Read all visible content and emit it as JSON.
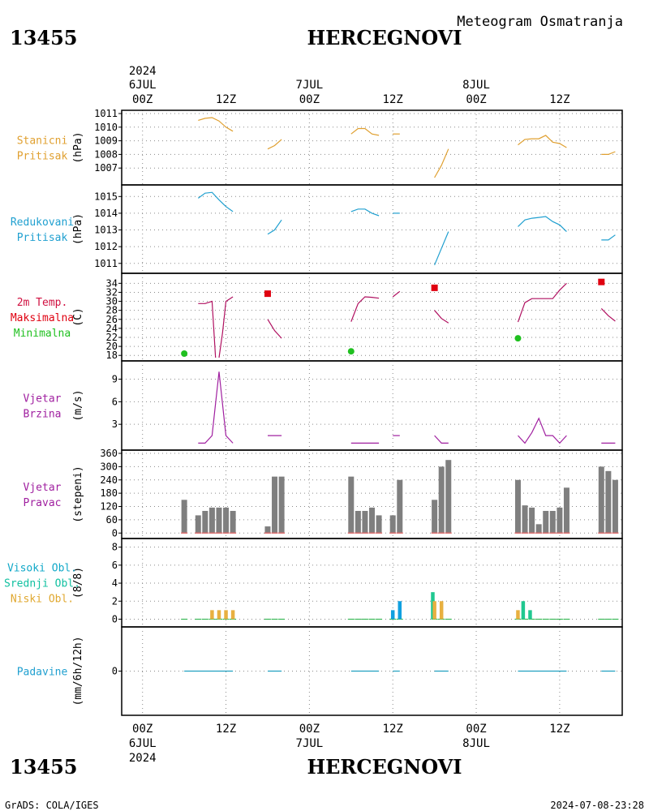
{
  "header": {
    "station_id": "13455",
    "station_name": "HERCEGNOVI",
    "subtitle": "Meteogram Osmatranja"
  },
  "footer": {
    "station_id": "13455",
    "station_name": "HERCEGNOVI",
    "credit": "GrADS: COLA/IGES",
    "timestamp": "2024-07-08-23:28"
  },
  "time_axis": {
    "top": {
      "year": "2024",
      "days": [
        {
          "day": "6JUL",
          "hour": "00Z",
          "t": 0
        },
        {
          "day": "7JUL",
          "hour": "00Z",
          "t": 24
        },
        {
          "day": "8JUL",
          "hour": "00Z",
          "t": 48
        }
      ],
      "midday": [
        {
          "hour": "12Z",
          "t": 12
        },
        {
          "hour": "12Z",
          "t": 36
        },
        {
          "hour": "12Z",
          "t": 60
        }
      ]
    },
    "bottom": {
      "hours": [
        {
          "hour": "00Z",
          "t": 0
        },
        {
          "hour": "12Z",
          "t": 12
        },
        {
          "hour": "00Z",
          "t": 24
        },
        {
          "hour": "12Z",
          "t": 36
        },
        {
          "hour": "00Z",
          "t": 48
        },
        {
          "hour": "12Z",
          "t": 60
        }
      ],
      "days": [
        {
          "day": "6JUL",
          "t": 0
        },
        {
          "day": "7JUL",
          "t": 24
        },
        {
          "day": "8JUL",
          "t": 48
        }
      ],
      "year": "2024"
    },
    "range_hours": [
      -3,
      69
    ]
  },
  "chart_data": [
    {
      "type": "line",
      "id": "station-pressure",
      "labels": [
        "Stanicni",
        "Pritisak"
      ],
      "label_colors": [
        "#e0a030",
        "#e0a030"
      ],
      "ylabel": "(hPa)",
      "color": "#e0a030",
      "ylim": [
        1006,
        1011
      ],
      "yticks": [
        1007,
        1008,
        1009,
        1010,
        1011
      ],
      "segments": [
        [
          [
            8,
            1010.5
          ],
          [
            9,
            1010.65
          ],
          [
            10,
            1010.7
          ],
          [
            11,
            1010.45
          ],
          [
            12,
            1010.0
          ],
          [
            13,
            1009.7
          ]
        ],
        [
          [
            18,
            1008.4
          ],
          [
            19,
            1008.65
          ],
          [
            20,
            1009.1
          ]
        ],
        [
          [
            30,
            1009.5
          ],
          [
            31,
            1009.9
          ],
          [
            32,
            1009.9
          ],
          [
            33,
            1009.5
          ],
          [
            34,
            1009.4
          ]
        ],
        [
          [
            36,
            1009.5
          ],
          [
            37,
            1009.5
          ]
        ],
        [
          [
            42,
            1006.3
          ],
          [
            43,
            1007.2
          ],
          [
            44,
            1008.4
          ]
        ],
        [
          [
            54,
            1008.7
          ],
          [
            55,
            1009.1
          ],
          [
            56,
            1009.15
          ],
          [
            57,
            1009.15
          ],
          [
            58,
            1009.4
          ],
          [
            59,
            1008.9
          ],
          [
            60,
            1008.8
          ],
          [
            61,
            1008.5
          ]
        ],
        [
          [
            66,
            1008.0
          ],
          [
            67,
            1008.0
          ],
          [
            68,
            1008.2
          ]
        ]
      ]
    },
    {
      "type": "line",
      "id": "reduced-pressure",
      "labels": [
        "Redukovani",
        "Pritisak"
      ],
      "label_colors": [
        "#20a0d0",
        "#20a0d0"
      ],
      "ylabel": "(hPa)",
      "color": "#20a0d0",
      "ylim": [
        1010.6,
        1015.5
      ],
      "yticks": [
        1011,
        1012,
        1013,
        1014,
        1015
      ],
      "segments": [
        [
          [
            8,
            1014.9
          ],
          [
            9,
            1015.2
          ],
          [
            10,
            1015.25
          ],
          [
            11,
            1014.8
          ],
          [
            12,
            1014.4
          ],
          [
            13,
            1014.1
          ]
        ],
        [
          [
            18,
            1012.75
          ],
          [
            19,
            1013.0
          ],
          [
            20,
            1013.6
          ]
        ],
        [
          [
            30,
            1014.1
          ],
          [
            31,
            1014.25
          ],
          [
            32,
            1014.25
          ],
          [
            33,
            1014.0
          ],
          [
            34,
            1013.85
          ]
        ],
        [
          [
            36,
            1014.0
          ],
          [
            37,
            1014.0
          ]
        ],
        [
          [
            42,
            1010.9
          ],
          [
            43,
            1011.9
          ],
          [
            44,
            1012.9
          ]
        ],
        [
          [
            54,
            1013.2
          ],
          [
            55,
            1013.6
          ],
          [
            56,
            1013.7
          ],
          [
            57,
            1013.75
          ],
          [
            58,
            1013.8
          ],
          [
            59,
            1013.5
          ],
          [
            60,
            1013.3
          ],
          [
            61,
            1012.9
          ]
        ],
        [
          [
            66,
            1012.4
          ],
          [
            67,
            1012.4
          ],
          [
            68,
            1012.7
          ]
        ]
      ]
    },
    {
      "type": "line",
      "id": "temperature",
      "labels": [
        "2m Temp.",
        "Maksimalna",
        "Minimalna"
      ],
      "label_colors": [
        "#d01040",
        "#e00010",
        "#20c020"
      ],
      "ylabel": "(C)",
      "color": "#b01060",
      "ylim": [
        17.5,
        35.5
      ],
      "yticks": [
        18,
        20,
        22,
        24,
        26,
        28,
        30,
        32,
        34
      ],
      "segments": [
        [
          [
            8,
            29.5
          ],
          [
            9,
            29.5
          ],
          [
            10,
            30.0
          ],
          [
            10.5,
            17.5
          ]
        ],
        [
          [
            11,
            17.5
          ],
          [
            11.5,
            23.0
          ],
          [
            12,
            30.0
          ],
          [
            13,
            31.0
          ]
        ],
        [
          [
            18,
            26.0
          ],
          [
            19,
            23.5
          ],
          [
            20,
            21.8
          ]
        ],
        [
          [
            30,
            25.5
          ],
          [
            31,
            29.5
          ],
          [
            32,
            31.0
          ],
          [
            33,
            30.9
          ],
          [
            34,
            30.7
          ]
        ],
        [
          [
            36,
            31.0
          ],
          [
            37,
            32.2
          ]
        ],
        [
          [
            42,
            28.0
          ],
          [
            43,
            26.2
          ],
          [
            44,
            25.2
          ]
        ],
        [
          [
            54,
            25.4
          ],
          [
            55,
            29.7
          ],
          [
            56,
            30.6
          ],
          [
            57,
            30.6
          ],
          [
            58,
            30.6
          ],
          [
            59,
            30.6
          ],
          [
            60,
            32.5
          ],
          [
            61,
            34.0
          ]
        ],
        [
          [
            66,
            28.4
          ],
          [
            67,
            26.8
          ],
          [
            68,
            25.6
          ]
        ]
      ],
      "max_points": [
        [
          18,
          31.7
        ],
        [
          42,
          33.0
        ],
        [
          66,
          34.3
        ]
      ],
      "max_color": "#e00010",
      "min_points": [
        [
          6,
          18.4
        ],
        [
          30,
          18.9
        ],
        [
          54,
          21.8
        ]
      ],
      "min_color": "#20c020"
    },
    {
      "type": "line",
      "id": "wind-speed",
      "labels": [
        "Vjetar",
        "Brzina"
      ],
      "label_colors": [
        "#a020a0",
        "#a020a0"
      ],
      "ylabel": "(m/s)",
      "color": "#a020a0",
      "ylim": [
        0,
        11
      ],
      "yticks": [
        3,
        6,
        9
      ],
      "segments": [
        [
          [
            8,
            0.5
          ],
          [
            9,
            0.5
          ],
          [
            10,
            1.5
          ],
          [
            11,
            10.0
          ],
          [
            12,
            1.5
          ],
          [
            13,
            0.5
          ]
        ],
        [
          [
            18,
            1.5
          ],
          [
            19,
            1.5
          ],
          [
            20,
            1.5
          ]
        ],
        [
          [
            30,
            0.5
          ],
          [
            31,
            0.5
          ],
          [
            32,
            0.5
          ],
          [
            33,
            0.5
          ],
          [
            34,
            0.5
          ]
        ],
        [
          [
            36,
            1.5
          ],
          [
            37,
            1.5
          ]
        ],
        [
          [
            42,
            1.5
          ],
          [
            43,
            0.5
          ],
          [
            44,
            0.5
          ]
        ],
        [
          [
            54,
            1.5
          ],
          [
            55,
            0.5
          ],
          [
            56,
            1.9
          ],
          [
            57,
            3.8
          ],
          [
            58,
            1.5
          ],
          [
            59,
            1.5
          ],
          [
            60,
            0.5
          ],
          [
            61,
            1.5
          ]
        ],
        [
          [
            66,
            0.5
          ],
          [
            67,
            0.5
          ],
          [
            68,
            0.5
          ]
        ]
      ]
    },
    {
      "type": "bar",
      "id": "wind-direction",
      "labels": [
        "Vjetar",
        "Pravac"
      ],
      "label_colors": [
        "#a020a0",
        "#a020a0"
      ],
      "ylabel": "(stepeni)",
      "color": "#7f7f7f",
      "baseline_color": "#e07070",
      "ylim": [
        -10,
        360
      ],
      "yticks": [
        0,
        60,
        120,
        180,
        240,
        300,
        360
      ],
      "bars": [
        [
          6,
          150
        ],
        [
          8,
          80
        ],
        [
          9,
          100
        ],
        [
          10,
          115
        ],
        [
          11,
          115
        ],
        [
          12,
          115
        ],
        [
          13,
          100
        ],
        [
          18,
          30
        ],
        [
          19,
          255
        ],
        [
          20,
          255
        ],
        [
          30,
          255
        ],
        [
          31,
          100
        ],
        [
          32,
          100
        ],
        [
          33,
          115
        ],
        [
          34,
          80
        ],
        [
          36,
          80
        ],
        [
          37,
          240
        ],
        [
          42,
          150
        ],
        [
          43,
          300
        ],
        [
          44,
          330
        ],
        [
          54,
          240
        ],
        [
          55,
          125
        ],
        [
          56,
          115
        ],
        [
          57,
          40
        ],
        [
          58,
          100
        ],
        [
          59,
          100
        ],
        [
          60,
          115
        ],
        [
          61,
          205
        ],
        [
          66,
          300
        ],
        [
          67,
          280
        ],
        [
          68,
          240
        ]
      ]
    },
    {
      "type": "bar",
      "id": "cloud-cover",
      "labels": [
        "Visoki Obl.",
        "Srednji Obl.",
        "Niski Obl."
      ],
      "label_colors": [
        "#10a8c8",
        "#10c0a0",
        "#e0a830"
      ],
      "ylabel": "(8/8)",
      "ylim": [
        -0.5,
        8.6
      ],
      "yticks": [
        0,
        2,
        4,
        6,
        8
      ],
      "series": [
        {
          "name": "Visoki Obl.",
          "color": "#10a0e0",
          "offset": 0.0,
          "values": [
            [
              36,
              1
            ],
            [
              37,
              2
            ]
          ]
        },
        {
          "name": "Srednji Obl.",
          "color": "#20c890",
          "offset": -0.25,
          "values": [
            [
              42,
              3
            ],
            [
              55,
              2
            ],
            [
              56,
              1
            ]
          ]
        },
        {
          "name": "Niski Obl.",
          "color": "#e8b040",
          "offset": 0.0,
          "values": [
            [
              10,
              1
            ],
            [
              11,
              1
            ],
            [
              12,
              1
            ],
            [
              13,
              1
            ],
            [
              42,
              2
            ],
            [
              43,
              2
            ],
            [
              54,
              1
            ]
          ]
        }
      ],
      "trace_color": "#20b040"
    },
    {
      "type": "line",
      "id": "precipitation",
      "labels": [
        "Padavine"
      ],
      "label_colors": [
        "#20a0d0"
      ],
      "ylabel": "(mm/6h/12h)",
      "color": "#20a0c0",
      "ylim": [
        -5,
        5
      ],
      "yticks": [
        0
      ],
      "segments": [
        [
          [
            6,
            0
          ],
          [
            8,
            0
          ],
          [
            9,
            0
          ],
          [
            10,
            0
          ],
          [
            11,
            0
          ],
          [
            12,
            0
          ],
          [
            13,
            0
          ]
        ],
        [
          [
            18,
            0
          ],
          [
            19,
            0
          ],
          [
            20,
            0
          ]
        ],
        [
          [
            30,
            0
          ],
          [
            31,
            0
          ],
          [
            32,
            0
          ],
          [
            33,
            0
          ],
          [
            34,
            0
          ]
        ],
        [
          [
            36,
            0
          ],
          [
            37,
            0
          ]
        ],
        [
          [
            42,
            0
          ],
          [
            43,
            0
          ],
          [
            44,
            0
          ]
        ],
        [
          [
            54,
            0
          ],
          [
            55,
            0
          ],
          [
            56,
            0
          ],
          [
            57,
            0
          ],
          [
            58,
            0
          ],
          [
            59,
            0
          ],
          [
            60,
            0
          ],
          [
            61,
            0
          ]
        ],
        [
          [
            66,
            0
          ],
          [
            67,
            0
          ],
          [
            68,
            0
          ]
        ]
      ]
    }
  ]
}
